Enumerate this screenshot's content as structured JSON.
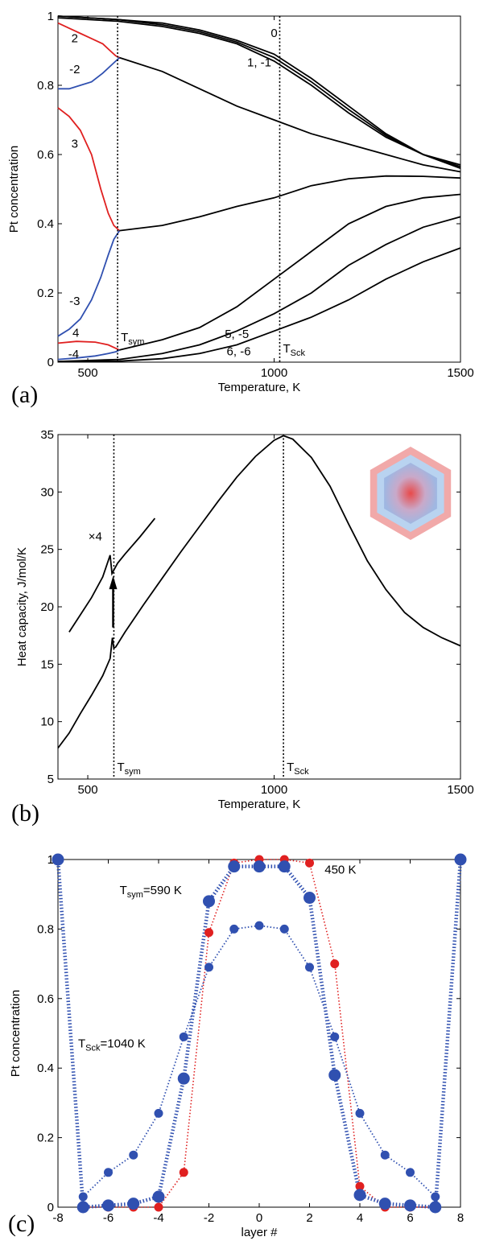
{
  "chart_data": [
    {
      "panel": "(a)",
      "type": "line",
      "xlabel": "Temperature, K",
      "ylabel": "Pt concentration",
      "xlim": [
        420,
        1500
      ],
      "ylim": [
        0,
        1
      ],
      "xticks": [
        500,
        1000,
        1500
      ],
      "yticks": [
        0,
        0.2,
        0.4,
        0.6,
        0.8,
        1
      ],
      "ytick_labels": [
        "0",
        "0.2",
        "0.4",
        "0.6",
        "0.8",
        "1"
      ],
      "vertical_lines": [
        {
          "x": 580,
          "label": "T",
          "sub": "sym"
        },
        {
          "x": 1015,
          "label": "T",
          "sub": "Sck"
        }
      ],
      "series": [
        {
          "label": "0",
          "color": "#000000",
          "points": [
            [
              420,
              1.0
            ],
            [
              580,
              0.99
            ],
            [
              700,
              0.98
            ],
            [
              800,
              0.96
            ],
            [
              900,
              0.93
            ],
            [
              1000,
              0.89
            ],
            [
              1100,
              0.82
            ],
            [
              1200,
              0.74
            ],
            [
              1300,
              0.66
            ],
            [
              1400,
              0.6
            ],
            [
              1500,
              0.56
            ]
          ]
        },
        {
          "label": "1, -1",
          "color": "#000000",
          "points": [
            [
              420,
              0.995
            ],
            [
              580,
              0.985
            ],
            [
              700,
              0.97
            ],
            [
              800,
              0.95
            ],
            [
              900,
              0.92
            ],
            [
              1000,
              0.87
            ],
            [
              1100,
              0.8
            ],
            [
              1200,
              0.72
            ],
            [
              1300,
              0.65
            ],
            [
              1400,
              0.6
            ],
            [
              1500,
              0.57
            ]
          ]
        },
        {
          "label": "1",
          "color": "#000000",
          "points": [
            [
              420,
              1.0
            ],
            [
              580,
              0.99
            ],
            [
              700,
              0.975
            ],
            [
              800,
              0.955
            ],
            [
              900,
              0.925
            ],
            [
              1000,
              0.88
            ],
            [
              1100,
              0.81
            ],
            [
              1200,
              0.73
            ],
            [
              1300,
              0.655
            ],
            [
              1400,
              0.6
            ],
            [
              1500,
              0.565
            ]
          ]
        },
        {
          "label": "2",
          "color": "#e02020",
          "points": [
            [
              420,
              0.98
            ],
            [
              450,
              0.965
            ],
            [
              480,
              0.95
            ],
            [
              510,
              0.935
            ],
            [
              540,
              0.92
            ],
            [
              560,
              0.9
            ],
            [
              575,
              0.885
            ],
            [
              585,
              0.88
            ]
          ]
        },
        {
          "label": "-2",
          "color": "#3050b0",
          "points": [
            [
              420,
              0.79
            ],
            [
              450,
              0.79
            ],
            [
              480,
              0.8
            ],
            [
              510,
              0.81
            ],
            [
              540,
              0.835
            ],
            [
              560,
              0.855
            ],
            [
              575,
              0.87
            ],
            [
              585,
              0.88
            ]
          ]
        },
        {
          "label": "2, -2",
          "color": "#000000",
          "points": [
            [
              585,
              0.88
            ],
            [
              700,
              0.84
            ],
            [
              800,
              0.79
            ],
            [
              900,
              0.74
            ],
            [
              1000,
              0.7
            ],
            [
              1100,
              0.66
            ],
            [
              1200,
              0.63
            ],
            [
              1300,
              0.6
            ],
            [
              1400,
              0.57
            ],
            [
              1500,
              0.55
            ]
          ]
        },
        {
          "label": "3",
          "color": "#e02020",
          "points": [
            [
              420,
              0.735
            ],
            [
              450,
              0.71
            ],
            [
              480,
              0.67
            ],
            [
              510,
              0.6
            ],
            [
              535,
              0.5
            ],
            [
              555,
              0.43
            ],
            [
              570,
              0.395
            ],
            [
              585,
              0.38
            ]
          ]
        },
        {
          "label": "-3",
          "color": "#3050b0",
          "points": [
            [
              420,
              0.075
            ],
            [
              450,
              0.095
            ],
            [
              480,
              0.125
            ],
            [
              510,
              0.18
            ],
            [
              535,
              0.245
            ],
            [
              555,
              0.31
            ],
            [
              570,
              0.355
            ],
            [
              585,
              0.38
            ]
          ]
        },
        {
          "label": "3, -3",
          "color": "#000000",
          "points": [
            [
              585,
              0.38
            ],
            [
              700,
              0.395
            ],
            [
              800,
              0.42
            ],
            [
              900,
              0.45
            ],
            [
              1000,
              0.475
            ],
            [
              1100,
              0.51
            ],
            [
              1200,
              0.53
            ],
            [
              1300,
              0.538
            ],
            [
              1400,
              0.537
            ],
            [
              1500,
              0.532
            ]
          ]
        },
        {
          "label": "4",
          "color": "#e02020",
          "points": [
            [
              420,
              0.055
            ],
            [
              470,
              0.06
            ],
            [
              520,
              0.058
            ],
            [
              555,
              0.05
            ],
            [
              575,
              0.04
            ],
            [
              585,
              0.035
            ]
          ]
        },
        {
          "label": "-4",
          "color": "#3050b0",
          "points": [
            [
              420,
              0.008
            ],
            [
              470,
              0.012
            ],
            [
              520,
              0.018
            ],
            [
              555,
              0.025
            ],
            [
              575,
              0.03
            ],
            [
              585,
              0.035
            ]
          ]
        },
        {
          "label": "4, -4",
          "color": "#000000",
          "points": [
            [
              585,
              0.035
            ],
            [
              700,
              0.065
            ],
            [
              800,
              0.1
            ],
            [
              900,
              0.16
            ],
            [
              1000,
              0.24
            ],
            [
              1100,
              0.32
            ],
            [
              1200,
              0.4
            ],
            [
              1300,
              0.45
            ],
            [
              1400,
              0.475
            ],
            [
              1500,
              0.485
            ]
          ]
        },
        {
          "label": "5, -5",
          "color": "#000000",
          "points": [
            [
              420,
              0.002
            ],
            [
              585,
              0.008
            ],
            [
              700,
              0.025
            ],
            [
              800,
              0.05
            ],
            [
              900,
              0.09
            ],
            [
              1000,
              0.14
            ],
            [
              1100,
              0.2
            ],
            [
              1200,
              0.28
            ],
            [
              1300,
              0.34
            ],
            [
              1400,
              0.39
            ],
            [
              1500,
              0.42
            ]
          ]
        },
        {
          "label": "6, -6",
          "color": "#000000",
          "points": [
            [
              420,
              0.001
            ],
            [
              585,
              0.003
            ],
            [
              700,
              0.01
            ],
            [
              800,
              0.025
            ],
            [
              900,
              0.05
            ],
            [
              1000,
              0.09
            ],
            [
              1100,
              0.13
            ],
            [
              1200,
              0.18
            ],
            [
              1300,
              0.24
            ],
            [
              1400,
              0.29
            ],
            [
              1500,
              0.33
            ]
          ]
        }
      ],
      "curve_labels": [
        {
          "text": "0",
          "x": 1000,
          "y": 0.94
        },
        {
          "text": "1, -1",
          "x": 960,
          "y": 0.855
        },
        {
          "text": "2",
          "x": 465,
          "y": 0.925
        },
        {
          "text": "-2",
          "x": 465,
          "y": 0.835
        },
        {
          "text": "3",
          "x": 465,
          "y": 0.62
        },
        {
          "text": "-3",
          "x": 465,
          "y": 0.165
        },
        {
          "text": "4",
          "x": 468,
          "y": 0.073
        },
        {
          "text": "-4",
          "x": 462,
          "y": 0.012
        },
        {
          "text": "5, -5",
          "x": 900,
          "y": 0.07
        },
        {
          "text": "6, -6",
          "x": 905,
          "y": 0.02
        }
      ]
    },
    {
      "panel": "(b)",
      "type": "line",
      "xlabel": "Temperature, K",
      "ylabel": "Heat capacity, J/mol/K",
      "xlim": [
        420,
        1500
      ],
      "ylim": [
        5,
        35
      ],
      "xticks": [
        500,
        1000,
        1500
      ],
      "yticks": [
        5,
        10,
        15,
        20,
        25,
        30,
        35
      ],
      "vertical_lines": [
        {
          "x": 570,
          "label": "T",
          "sub": "sym"
        },
        {
          "x": 1025,
          "label": "T",
          "sub": "Sck"
        }
      ],
      "series": [
        {
          "name": "Heat capacity",
          "color": "#000000",
          "points": [
            [
              420,
              7.7
            ],
            [
              450,
              9.0
            ],
            [
              480,
              10.7
            ],
            [
              510,
              12.3
            ],
            [
              540,
              14.0
            ],
            [
              560,
              15.5
            ],
            [
              566,
              17.3
            ],
            [
              570,
              16.4
            ],
            [
              575,
              16.5
            ],
            [
              600,
              17.8
            ],
            [
              650,
              20.2
            ],
            [
              700,
              22.5
            ],
            [
              750,
              24.8
            ],
            [
              800,
              27.0
            ],
            [
              850,
              29.2
            ],
            [
              900,
              31.3
            ],
            [
              950,
              33.1
            ],
            [
              1000,
              34.5
            ],
            [
              1025,
              34.9
            ],
            [
              1050,
              34.6
            ],
            [
              1100,
              33.0
            ],
            [
              1150,
              30.5
            ],
            [
              1200,
              27.2
            ],
            [
              1250,
              24.0
            ],
            [
              1300,
              21.5
            ],
            [
              1350,
              19.5
            ],
            [
              1400,
              18.2
            ],
            [
              1450,
              17.3
            ],
            [
              1500,
              16.6
            ]
          ]
        },
        {
          "name": "×4 inset",
          "color": "#000000",
          "points": [
            [
              450,
              17.8
            ],
            [
              480,
              19.3
            ],
            [
              510,
              20.8
            ],
            [
              540,
              22.6
            ],
            [
              560,
              24.5
            ],
            [
              565,
              22.9
            ],
            [
              580,
              23.8
            ],
            [
              600,
              24.6
            ],
            [
              640,
              26.1
            ],
            [
              680,
              27.7
            ]
          ]
        }
      ],
      "inset_label": "×4"
    },
    {
      "panel": "(c)",
      "type": "scatter",
      "xlabel": "layer #",
      "ylabel": "Pt concentration",
      "xlim": [
        -8,
        8
      ],
      "ylim": [
        0,
        1
      ],
      "xticks": [
        -8,
        -6,
        -4,
        -2,
        0,
        2,
        4,
        6,
        8
      ],
      "yticks": [
        0,
        0.2,
        0.4,
        0.6,
        0.8,
        1
      ],
      "ytick_labels": [
        "0",
        "0.2",
        "0.4",
        "0.6",
        "0.8",
        "1"
      ],
      "series": [
        {
          "name": "450 K",
          "color": "#e02020",
          "x": [
            -7,
            -6,
            -5,
            -4,
            -3,
            -2,
            -1,
            0,
            1,
            2,
            3,
            4,
            5,
            6,
            7
          ],
          "values": [
            0,
            0,
            0,
            0,
            0.1,
            0.79,
            0.99,
            1.0,
            1.0,
            0.99,
            0.7,
            0.06,
            0,
            0,
            0
          ]
        },
        {
          "name": "T_sym=590 K",
          "color": "#3050b0",
          "x": [
            -8,
            -7,
            -6,
            -5,
            -4,
            -3,
            -2,
            -1,
            0,
            1,
            2,
            3,
            4,
            5,
            6,
            7,
            8
          ],
          "values": [
            1.0,
            0,
            0.005,
            0.01,
            0.03,
            0.37,
            0.88,
            0.98,
            0.98,
            0.98,
            0.89,
            0.38,
            0.035,
            0.01,
            0.005,
            0,
            1.0
          ]
        },
        {
          "name": "T_Sck=1040 K",
          "color": "#3050b0",
          "x": [
            -7,
            -6,
            -5,
            -4,
            -3,
            -2,
            -1,
            0,
            1,
            2,
            3,
            4,
            5,
            6,
            7
          ],
          "values": [
            0.03,
            0.1,
            0.15,
            0.27,
            0.49,
            0.69,
            0.8,
            0.81,
            0.8,
            0.69,
            0.49,
            0.27,
            0.15,
            0.1,
            0.03
          ]
        }
      ],
      "annotations": [
        {
          "text": "450 K",
          "x": 2.6,
          "y": 0.96
        },
        {
          "text": "T",
          "sub": "sym",
          "tail": "=590 K",
          "x": -5.55,
          "y": 0.9
        },
        {
          "text": "T",
          "sub": "Sck",
          "tail": "=1040 K",
          "x": -7.2,
          "y": 0.46
        }
      ]
    }
  ],
  "panel_letters": [
    "(a)",
    "(b)",
    "(c)"
  ],
  "tick_suffix_x_panel_c": [
    "-8",
    "-6",
    "-4",
    "-2",
    "0",
    "2",
    "4",
    "6",
    "8"
  ]
}
